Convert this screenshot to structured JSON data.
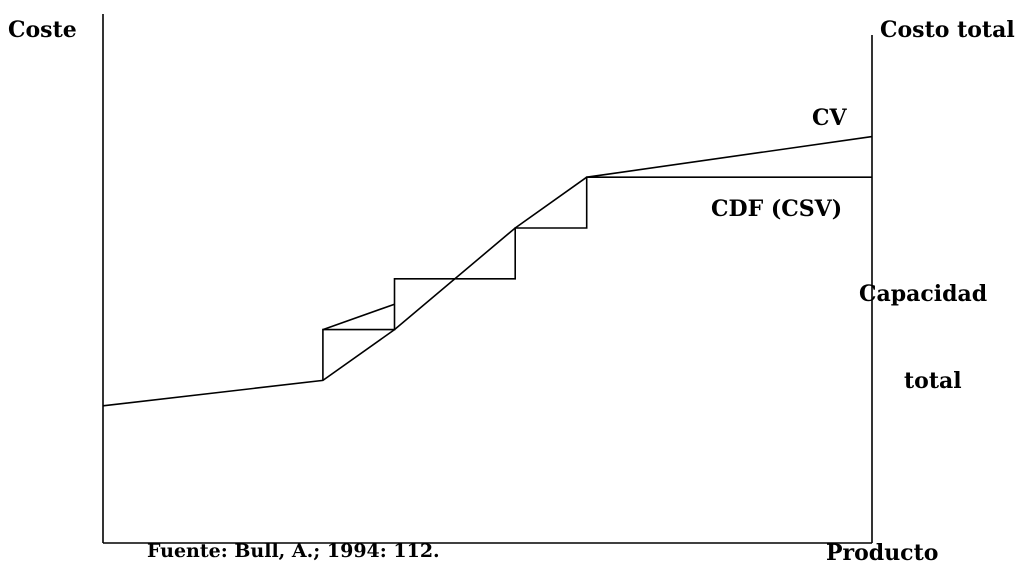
{
  "chart_data": {
    "type": "line",
    "title": "",
    "xlabel": "Producto",
    "ylabel": "Coste",
    "right_axis_label": "Costo total",
    "source": "Fuente: Bull, A.; 1994: 112.",
    "xlim": [
      0,
      100
    ],
    "ylim": [
      0,
      100
    ],
    "grid": false,
    "legend": "none",
    "series": [
      {
        "name": "CV",
        "style": "total-cost-line",
        "x": [
          0,
          28.6,
          37.9,
          53.6,
          62.9,
          100
        ],
        "y": [
          27,
          32,
          42,
          62,
          72,
          80
        ]
      },
      {
        "name": "CDF (CSV)",
        "style": "step-fixed-cost",
        "x": [
          28.6,
          28.6,
          37.9,
          37.9,
          53.6,
          53.6,
          62.9,
          62.9,
          100
        ],
        "y": [
          32,
          42,
          42,
          52,
          52,
          62,
          62,
          72,
          72
        ]
      },
      {
        "name": "",
        "style": "step-diagonal",
        "x": [
          28.6,
          37.9
        ],
        "y": [
          42,
          47
        ]
      }
    ],
    "annotations": [
      {
        "text": "Capacidad",
        "anchor": "right-axis"
      },
      {
        "text": "total",
        "anchor": "right-axis"
      }
    ]
  }
}
